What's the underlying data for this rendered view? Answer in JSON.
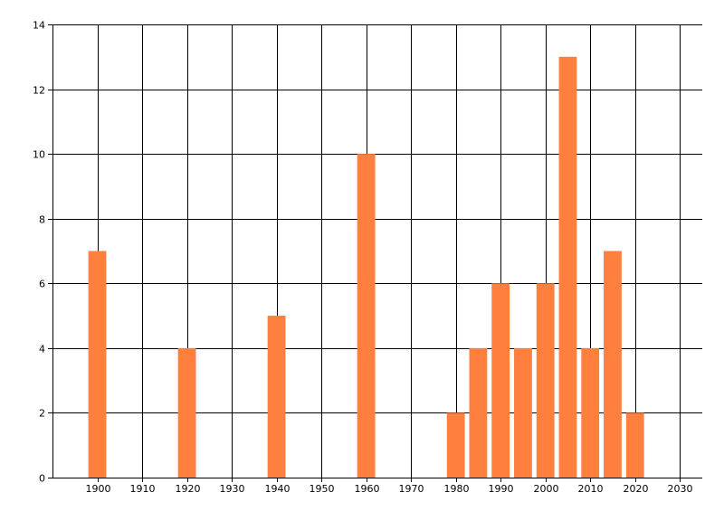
{
  "chart_data": {
    "type": "bar",
    "title": "",
    "xlabel": "",
    "ylabel": "",
    "x": [
      1900,
      1920,
      1940,
      1960,
      1980,
      1985,
      1990,
      1995,
      2000,
      2005,
      2010,
      2015,
      2020
    ],
    "values": [
      7,
      4,
      5,
      10,
      2,
      4,
      6,
      4,
      6,
      13,
      4,
      7,
      2
    ],
    "xlim": [
      1890,
      2035
    ],
    "ylim": [
      0,
      14
    ],
    "x_ticks": [
      1900,
      1910,
      1920,
      1930,
      1940,
      1950,
      1960,
      1970,
      1980,
      1990,
      2000,
      2010,
      2020,
      2030
    ],
    "y_ticks": [
      0,
      2,
      4,
      6,
      8,
      10,
      12,
      14
    ],
    "bar_width_years": 4,
    "grid": true,
    "legend": "none",
    "bar_color": "#ff7f3f",
    "grid_color": "#000000"
  }
}
